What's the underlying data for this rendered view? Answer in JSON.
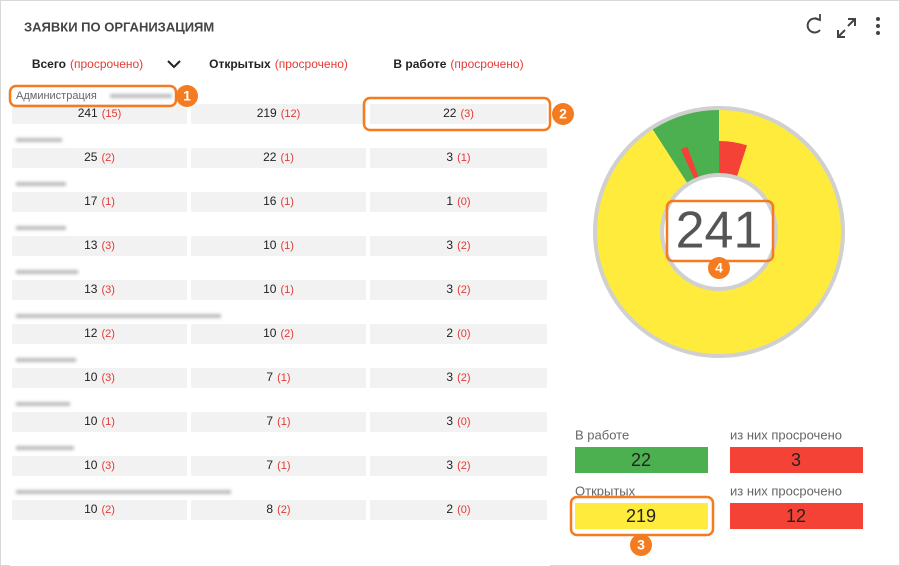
{
  "header": {
    "title": "ЗАЯВКИ ПО ОРГАНИЗАЦИЯМ"
  },
  "table": {
    "columns": [
      {
        "name": "Всего",
        "note": "(просрочено)"
      },
      {
        "name": "Открытых",
        "note": "(просрочено)"
      },
      {
        "name": "В работе",
        "note": "(просрочено)"
      }
    ],
    "rows": [
      {
        "label": "Администрация",
        "cells": [
          [
            241,
            "(15)"
          ],
          [
            219,
            "(12)"
          ],
          [
            22,
            "(3)"
          ]
        ]
      },
      {
        "cells": [
          [
            25,
            "(2)"
          ],
          [
            22,
            "(1)"
          ],
          [
            3,
            "(1)"
          ]
        ]
      },
      {
        "cells": [
          [
            17,
            "(1)"
          ],
          [
            16,
            "(1)"
          ],
          [
            1,
            "(0)"
          ]
        ]
      },
      {
        "cells": [
          [
            13,
            "(3)"
          ],
          [
            10,
            "(1)"
          ],
          [
            3,
            "(2)"
          ]
        ]
      },
      {
        "cells": [
          [
            13,
            "(3)"
          ],
          [
            10,
            "(1)"
          ],
          [
            3,
            "(2)"
          ]
        ]
      },
      {
        "cells": [
          [
            12,
            "(2)"
          ],
          [
            10,
            "(2)"
          ],
          [
            2,
            "(0)"
          ]
        ]
      },
      {
        "cells": [
          [
            10,
            "(3)"
          ],
          [
            7,
            "(1)"
          ],
          [
            3,
            "(2)"
          ]
        ]
      },
      {
        "cells": [
          [
            10,
            "(1)"
          ],
          [
            7,
            "(1)"
          ],
          [
            3,
            "(0)"
          ]
        ]
      },
      {
        "cells": [
          [
            10,
            "(3)"
          ],
          [
            7,
            "(1)"
          ],
          [
            3,
            "(2)"
          ]
        ]
      },
      {
        "cells": [
          [
            10,
            "(2)"
          ],
          [
            8,
            "(2)"
          ],
          [
            2,
            "(0)"
          ]
        ]
      }
    ]
  },
  "donut": {
    "center": 241
  },
  "stats": {
    "work": {
      "label": "В работе",
      "value": 22
    },
    "work_overdue": {
      "label": "из них просрочено",
      "value": 3
    },
    "open": {
      "label": "Открытых",
      "value": 219
    },
    "open_overdue": {
      "label": "из них просрочено",
      "value": 12
    }
  },
  "callouts": [
    1,
    2,
    3,
    4
  ]
}
